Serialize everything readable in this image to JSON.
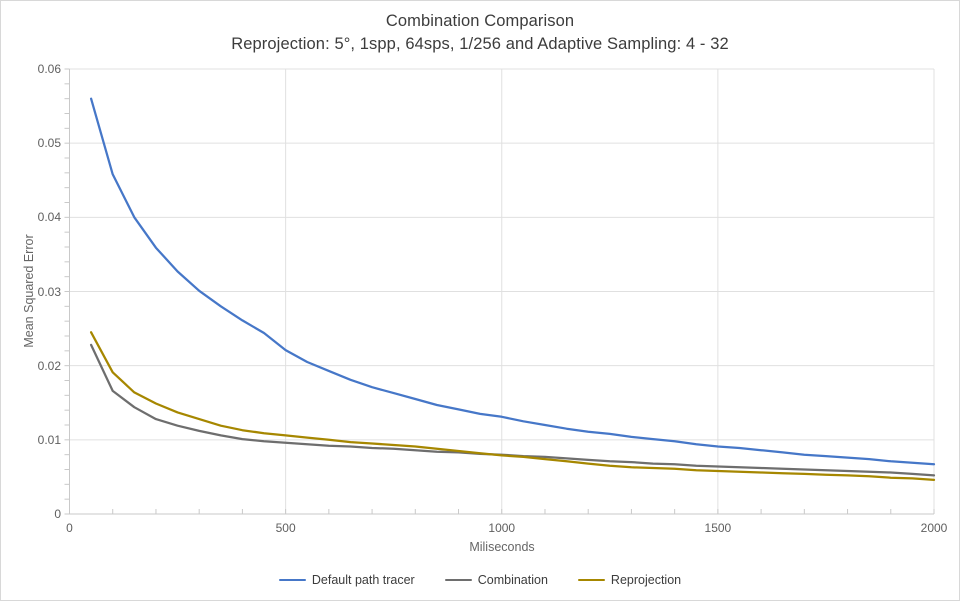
{
  "chart_data": {
    "type": "line",
    "title": "Combination Comparison",
    "subtitle": "Reprojection: 5°, 1spp, 64sps, 1/256 and Adaptive Sampling: 4 - 32",
    "xlabel": "Miliseconds",
    "ylabel": "Mean Squared Error",
    "xlim": [
      0,
      2000
    ],
    "ylim": [
      0,
      0.06
    ],
    "grid": "major-on",
    "legend_position": "bottom",
    "x_major_ticks": [
      0,
      500,
      1000,
      1500,
      2000
    ],
    "x_tick_labels": [
      "0",
      "500",
      "1000",
      "1500",
      "2000"
    ],
    "x_minor_step": 100,
    "y_major_ticks": [
      0,
      0.01,
      0.02,
      0.03,
      0.04,
      0.05,
      0.06
    ],
    "y_tick_labels": [
      "0",
      "0.01",
      "0.02",
      "0.03",
      "0.04",
      "0.05",
      "0.06"
    ],
    "y_minor_step": 0.002,
    "x": [
      50,
      100,
      150,
      200,
      250,
      300,
      350,
      400,
      450,
      500,
      550,
      600,
      650,
      700,
      750,
      800,
      850,
      900,
      950,
      1000,
      1050,
      1100,
      1150,
      1200,
      1250,
      1300,
      1350,
      1400,
      1450,
      1500,
      1550,
      1600,
      1650,
      1700,
      1750,
      1800,
      1850,
      1900,
      1950,
      2000
    ],
    "series": [
      {
        "name": "Default path tracer",
        "color": "#4677C8",
        "values": [
          0.056,
          0.0458,
          0.04,
          0.0359,
          0.0327,
          0.0301,
          0.028,
          0.0261,
          0.0244,
          0.0221,
          0.0205,
          0.0193,
          0.0181,
          0.0171,
          0.0163,
          0.0155,
          0.0147,
          0.0141,
          0.0135,
          0.0131,
          0.0125,
          0.012,
          0.0115,
          0.0111,
          0.0108,
          0.0104,
          0.0101,
          0.0098,
          0.0094,
          0.0091,
          0.0089,
          0.0086,
          0.0083,
          0.008,
          0.0078,
          0.0076,
          0.0074,
          0.0071,
          0.0069,
          0.0067
        ]
      },
      {
        "name": "Combination",
        "color": "#6E6E6E",
        "values": [
          0.0228,
          0.0166,
          0.0144,
          0.0128,
          0.0119,
          0.0112,
          0.0106,
          0.0101,
          0.0098,
          0.0096,
          0.0094,
          0.0092,
          0.0091,
          0.0089,
          0.0088,
          0.0086,
          0.0084,
          0.0083,
          0.0081,
          0.008,
          0.0078,
          0.0077,
          0.0075,
          0.0073,
          0.0071,
          0.007,
          0.0068,
          0.0067,
          0.0065,
          0.0064,
          0.0063,
          0.0062,
          0.0061,
          0.006,
          0.0059,
          0.0058,
          0.0057,
          0.0056,
          0.0054,
          0.0052
        ]
      },
      {
        "name": "Reprojection",
        "color": "#A68700",
        "values": [
          0.0245,
          0.0191,
          0.0164,
          0.0149,
          0.0137,
          0.0128,
          0.0119,
          0.0113,
          0.0109,
          0.0106,
          0.0103,
          0.01,
          0.0097,
          0.0095,
          0.0093,
          0.0091,
          0.0088,
          0.0085,
          0.0082,
          0.0079,
          0.0077,
          0.0074,
          0.0071,
          0.0068,
          0.0065,
          0.0063,
          0.0062,
          0.0061,
          0.0059,
          0.0058,
          0.0057,
          0.0056,
          0.0055,
          0.0054,
          0.0053,
          0.0052,
          0.0051,
          0.0049,
          0.0048,
          0.0046
        ]
      }
    ]
  },
  "colors": {
    "background": "#ffffff",
    "border": "#d8d8d8",
    "gridline": "#e0e0e0",
    "axis_line": "#c9c9c9",
    "tick_mark": "#c9c9c9",
    "title_text": "#3c3c3c",
    "tick_label_text": "#5f5f5f",
    "axis_title_text": "#666666",
    "legend_text": "#3c3c3c"
  }
}
